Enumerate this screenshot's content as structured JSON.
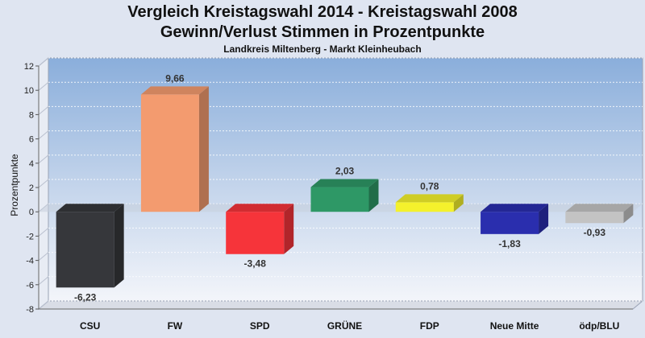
{
  "chart_data": {
    "type": "bar",
    "title": "Vergleich Kreistagswahl 2014 - Kreistagswahl 2008",
    "subtitle": "Gewinn/Verlust Stimmen in Prozentpunkte",
    "subtitle2": "Landkreis Miltenberg - Markt Kleinheubach",
    "ylabel": "Prozentpunkte",
    "xlabel": "",
    "ylim": [
      -8,
      12
    ],
    "yticks": [
      "12",
      "10",
      "8",
      "6",
      "4",
      "2",
      "0",
      "-2",
      "-4",
      "-6",
      "-8"
    ],
    "grid": true,
    "categories": [
      "CSU",
      "FW",
      "SPD",
      "GRÜNE",
      "FDP",
      "Neue Mitte",
      "ödp/BLU"
    ],
    "values": [
      -6.23,
      9.66,
      -3.48,
      2.03,
      0.78,
      -1.83,
      -0.93
    ],
    "value_labels": [
      "-6,23",
      "9,66",
      "-3,48",
      "2,03",
      "0,78",
      "-1,83",
      "-0,93"
    ],
    "colors": [
      "#36373b",
      "#f39b6f",
      "#f6343a",
      "#2e9866",
      "#f4f12c",
      "#2a2eae",
      "#c3c3c3"
    ]
  }
}
